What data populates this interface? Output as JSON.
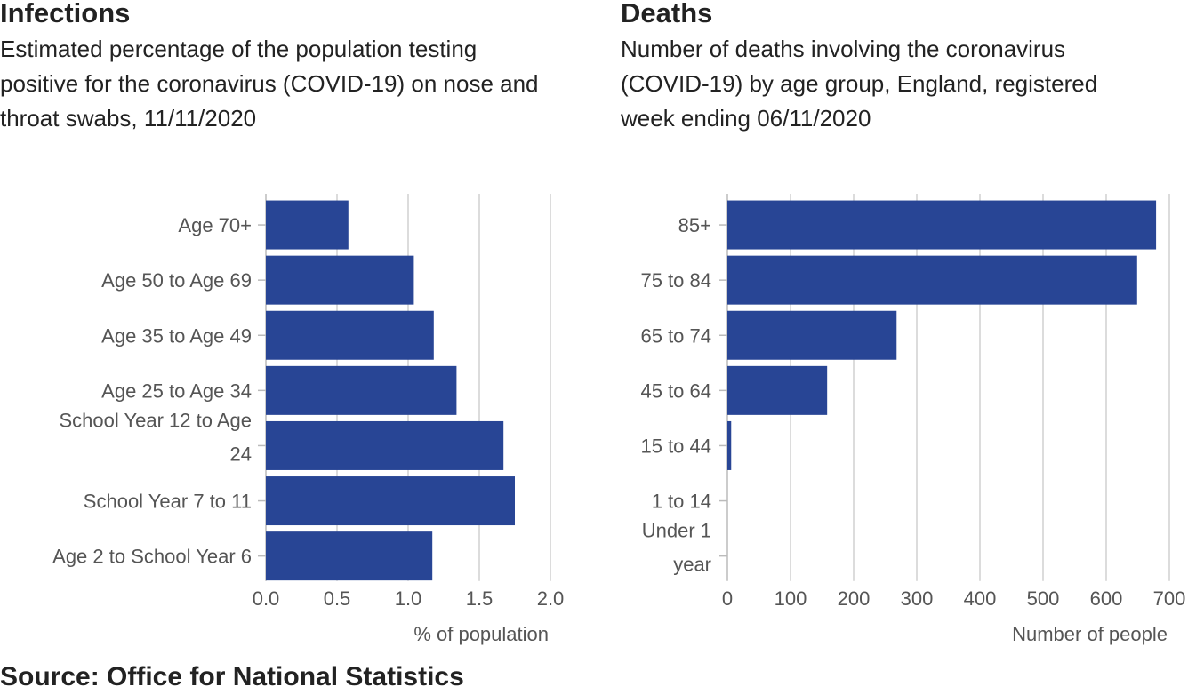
{
  "source": "Source: Office for National Statistics",
  "colors": {
    "bar": "#284595",
    "grid": "#d0d0d0",
    "axis": "#bbbbbb",
    "text": "#222222",
    "label": "#555555"
  },
  "chart_data": [
    {
      "type": "bar",
      "orientation": "horizontal",
      "title": "Infections",
      "subtitle": "Estimated percentage of the population testing positive for the coronavirus (COVID-19) on nose and throat swabs, 11/11/2020",
      "categories": [
        "Age 70+",
        "Age 50 to Age 69",
        "Age 35 to Age 49",
        "Age 25 to Age 34",
        "School Year 12 to Age 24",
        "School Year 7 to 11",
        "Age 2 to School Year 6"
      ],
      "values": [
        0.58,
        1.04,
        1.18,
        1.34,
        1.67,
        1.75,
        1.17
      ],
      "xlabel": "% of population",
      "ylabel": "",
      "xlim": [
        0,
        2.0
      ],
      "xticks": [
        0,
        0.5,
        1.0,
        1.5,
        2.0
      ],
      "xtick_labels": [
        "0.0",
        "0.5",
        "1.0",
        "1.5",
        "2.0"
      ],
      "grid": true
    },
    {
      "type": "bar",
      "orientation": "horizontal",
      "title": "Deaths",
      "subtitle": "Number of deaths involving the coronavirus (COVID-19) by age group, England, registered week ending 06/11/2020",
      "categories": [
        "85+",
        "75 to 84",
        "65 to 74",
        "45 to 64",
        "15 to 44",
        "1 to 14",
        "Under 1 year"
      ],
      "values": [
        679,
        649,
        268,
        158,
        6,
        0,
        0
      ],
      "xlabel": "Number of people",
      "ylabel": "",
      "xlim": [
        0,
        700
      ],
      "xticks": [
        0,
        100,
        200,
        300,
        400,
        500,
        600,
        700
      ],
      "xtick_labels": [
        "0",
        "100",
        "200",
        "300",
        "400",
        "500",
        "600",
        "700"
      ],
      "grid": true
    }
  ]
}
